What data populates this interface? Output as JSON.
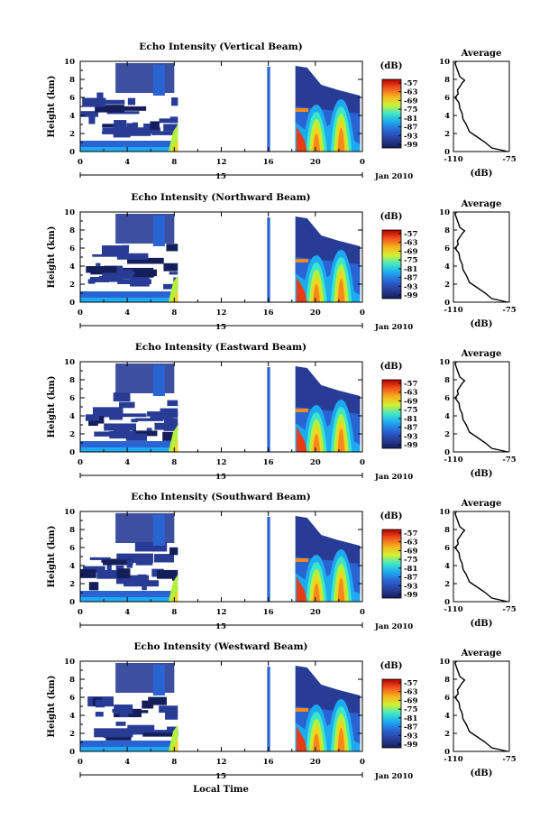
{
  "chart_data": [
    {
      "type": "heatmap",
      "title": "Echo Intensity (Vertical Beam)",
      "ylabel": "Height (km)",
      "ylim": [
        0,
        10
      ],
      "yticks": [
        0,
        2,
        4,
        6,
        8,
        10
      ],
      "xticks": [
        "0",
        "4",
        "8",
        "12",
        "16",
        "20",
        "0"
      ],
      "date_day": "15",
      "date_label": "Jan 2010",
      "colorbar_label": "(dB)",
      "colorbar_ticks": [
        "-57",
        "-63",
        "-69",
        "-75",
        "-81",
        "-87",
        "-93",
        "-99"
      ],
      "profile": {
        "title": "Average",
        "xlabel": "(dB)",
        "xticks": [
          "-110",
          "-75"
        ],
        "ylim": [
          0,
          10
        ],
        "yticks": [
          0,
          2,
          4,
          6,
          8,
          10
        ]
      }
    },
    {
      "type": "heatmap",
      "title": "Echo Intensity (Northward Beam)",
      "ylabel": "Height (km)",
      "ylim": [
        0,
        10
      ],
      "yticks": [
        0,
        2,
        4,
        6,
        8,
        10
      ],
      "xticks": [
        "0",
        "4",
        "8",
        "12",
        "16",
        "20",
        "0"
      ],
      "date_day": "15",
      "date_label": "Jan 2010",
      "colorbar_label": "(dB)",
      "colorbar_ticks": [
        "-57",
        "-63",
        "-69",
        "-75",
        "-81",
        "-87",
        "-93",
        "-99"
      ],
      "profile": {
        "title": "Average",
        "xlabel": "(dB)",
        "xticks": [
          "-110",
          "-75"
        ],
        "ylim": [
          0,
          10
        ],
        "yticks": [
          0,
          2,
          4,
          6,
          8,
          10
        ]
      }
    },
    {
      "type": "heatmap",
      "title": "Echo Intensity (Eastward Beam)",
      "ylabel": "Height (km)",
      "ylim": [
        0,
        10
      ],
      "yticks": [
        0,
        2,
        4,
        6,
        8,
        10
      ],
      "xticks": [
        "0",
        "4",
        "8",
        "12",
        "16",
        "20",
        "0"
      ],
      "date_day": "15",
      "date_label": "Jan 2010",
      "colorbar_label": "(dB)",
      "colorbar_ticks": [
        "-57",
        "-63",
        "-69",
        "-75",
        "-81",
        "-87",
        "-93",
        "-99"
      ],
      "profile": {
        "title": "Average",
        "xlabel": "(dB)",
        "xticks": [
          "-110",
          "-75"
        ],
        "ylim": [
          0,
          10
        ],
        "yticks": [
          0,
          2,
          4,
          6,
          8,
          10
        ]
      }
    },
    {
      "type": "heatmap",
      "title": "Echo Intensity (Southward Beam)",
      "ylabel": "Height (km)",
      "ylim": [
        0,
        10
      ],
      "yticks": [
        0,
        2,
        4,
        6,
        8,
        10
      ],
      "xticks": [
        "0",
        "4",
        "8",
        "12",
        "16",
        "20",
        "0"
      ],
      "date_day": "15",
      "date_label": "Jan 2010",
      "colorbar_label": "(dB)",
      "colorbar_ticks": [
        "-57",
        "-63",
        "-69",
        "-75",
        "-81",
        "-87",
        "-93",
        "-99"
      ],
      "profile": {
        "title": "Average",
        "xlabel": "(dB)",
        "xticks": [
          "-110",
          "-75"
        ],
        "ylim": [
          0,
          10
        ],
        "yticks": [
          0,
          2,
          4,
          6,
          8,
          10
        ]
      }
    },
    {
      "type": "heatmap",
      "title": "Echo Intensity (Westward Beam)",
      "ylabel": "Height (km)",
      "ylim": [
        0,
        10
      ],
      "yticks": [
        0,
        2,
        4,
        6,
        8,
        10
      ],
      "xticks": [
        "0",
        "4",
        "8",
        "12",
        "16",
        "20",
        "0"
      ],
      "date_day": "15",
      "date_label": "Jan 2010",
      "colorbar_label": "(dB)",
      "colorbar_ticks": [
        "-57",
        "-63",
        "-69",
        "-75",
        "-81",
        "-87",
        "-93",
        "-99"
      ],
      "profile": {
        "title": "Average",
        "xlabel": "(dB)",
        "xticks": [
          "-110",
          "-75"
        ],
        "ylim": [
          0,
          10
        ],
        "yticks": [
          0,
          2,
          4,
          6,
          8,
          10
        ]
      }
    }
  ],
  "xlabel": "Local Time",
  "colors": {
    "scale": [
      "#b40000",
      "#e83c14",
      "#f58a1c",
      "#f5d21e",
      "#b4f03c",
      "#3ce6c8",
      "#1eaaf0",
      "#2a64d2",
      "#283c96",
      "#141e5a"
    ]
  }
}
